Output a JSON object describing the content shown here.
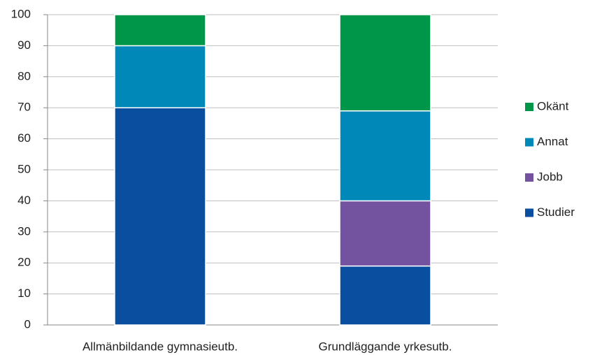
{
  "chart_data": {
    "type": "stacked_bar",
    "categories": [
      "Allmänbildande gymnasieutb.",
      "Grundläggande yrkesutb."
    ],
    "series": [
      {
        "name": "Studier",
        "color": "#0a4ea0",
        "values": [
          70,
          19
        ]
      },
      {
        "name": "Jobb",
        "color": "#7352a0",
        "values": [
          0,
          21
        ]
      },
      {
        "name": "Annat",
        "color": "#0088b8",
        "values": [
          20,
          29
        ]
      },
      {
        "name": "Okänt",
        "color": "#00964a",
        "values": [
          10,
          31
        ]
      }
    ],
    "ylim": [
      0,
      100
    ],
    "yticks": [
      0,
      10,
      20,
      30,
      40,
      50,
      60,
      70,
      80,
      90,
      100
    ],
    "grid": true,
    "legend": "right"
  }
}
